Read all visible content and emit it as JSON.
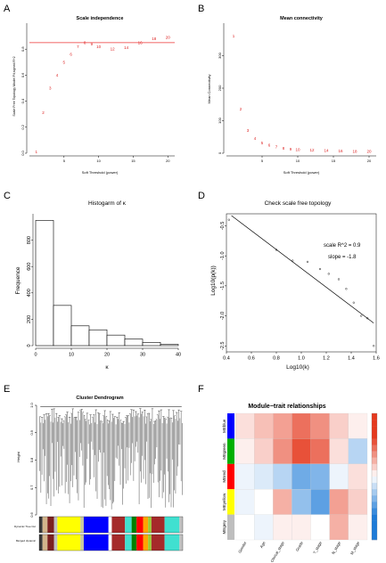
{
  "panels": {
    "A": {
      "letter": "A",
      "chart_data": {
        "type": "scatter",
        "title": "Scale independence",
        "xlabel": "Soft Threshold (power)",
        "ylabel": "Scale Free Topology Model Fit,signed R^2",
        "xlim": [
          0,
          21
        ],
        "ylim": [
          0.0,
          1.0
        ],
        "xticks": [
          5,
          10,
          15,
          20
        ],
        "yticks": [
          0.0,
          0.2,
          0.4,
          0.6,
          0.8
        ],
        "x": [
          1,
          2,
          3,
          4,
          5,
          6,
          7,
          8,
          9,
          10,
          12,
          14,
          16,
          18,
          20
        ],
        "y": [
          0.01,
          0.31,
          0.5,
          0.6,
          0.7,
          0.76,
          0.82,
          0.85,
          0.84,
          0.82,
          0.8,
          0.81,
          0.85,
          0.88,
          0.89
        ],
        "labels": [
          "1",
          "2",
          "3",
          "4",
          "5",
          "6",
          "7",
          "8",
          "9",
          "10",
          "12",
          "14",
          "16",
          "18",
          "20"
        ],
        "hline": 0.85,
        "colors": {
          "points": "#d22",
          "hline": "#e33"
        }
      }
    },
    "B": {
      "letter": "B",
      "chart_data": {
        "type": "scatter",
        "title": "Mean connectivity",
        "xlabel": "Soft Threshold (power)",
        "ylabel": "Mean Connectivity",
        "xlim": [
          0,
          21
        ],
        "ylim": [
          0,
          400
        ],
        "xticks": [
          5,
          10,
          15,
          20
        ],
        "yticks": [
          0,
          100,
          200,
          300
        ],
        "x": [
          1,
          2,
          3,
          4,
          5,
          6,
          7,
          8,
          9,
          10,
          12,
          14,
          16,
          18,
          20
        ],
        "y": [
          360,
          135,
          70,
          45,
          32,
          24,
          19,
          15,
          13,
          11,
          9,
          8,
          7,
          6,
          6
        ],
        "labels": [
          "1",
          "2",
          "3",
          "4",
          "5",
          "6",
          "7",
          "8",
          "9",
          "10",
          "12",
          "14",
          "16",
          "18",
          "20"
        ],
        "colors": {
          "points": "#d22"
        }
      }
    },
    "C": {
      "letter": "C",
      "chart_data": {
        "type": "bar",
        "title": "Histogarm of κ",
        "xlabel": "κ",
        "ylabel": "Frequence",
        "bin_edges": [
          0,
          5,
          10,
          15,
          20,
          25,
          30,
          35,
          40
        ],
        "values": [
          950,
          305,
          150,
          120,
          80,
          50,
          25,
          10
        ],
        "xlim": [
          0,
          40
        ],
        "ylim": [
          0,
          1000
        ],
        "xticks": [
          0,
          10,
          20,
          30,
          40
        ],
        "yticks": [
          0,
          200,
          400,
          600,
          800
        ]
      }
    },
    "D": {
      "letter": "D",
      "chart_data": {
        "type": "scatter",
        "title": "Check scale free topology",
        "xlabel": "Log10(k)",
        "ylabel": "Log10(p(k))",
        "xlim": [
          0.4,
          1.6
        ],
        "ylim": [
          -2.6,
          -0.3
        ],
        "xticks": [
          0.4,
          0.6,
          0.8,
          1.0,
          1.2,
          1.4,
          1.6
        ],
        "yticks": [
          -2.5,
          -2.0,
          -1.5,
          -1.0,
          -0.5
        ],
        "x": [
          0.42,
          0.8,
          0.93,
          1.05,
          1.15,
          1.22,
          1.3,
          1.36,
          1.42,
          1.48,
          1.53,
          1.58
        ],
        "y": [
          -0.4,
          -0.9,
          -1.08,
          -1.1,
          -1.22,
          -1.3,
          -1.39,
          -1.55,
          -1.78,
          -2.0,
          -2.04,
          -2.5
        ],
        "fit": {
          "x": [
            0.44,
            1.58
          ],
          "y": [
            -0.33,
            -2.12
          ]
        },
        "annotations": [
          "scale R^2 = 0.9",
          "slope = -1.8"
        ]
      }
    },
    "E": {
      "letter": "E",
      "chart_data": {
        "type": "dendrogram",
        "title": "Cluster Dendrogram",
        "ylabel": "Height",
        "ylim": [
          0.6,
          1.0
        ],
        "yticks": [
          0.6,
          0.7,
          0.8,
          0.9,
          1.0
        ],
        "row_labels": [
          "Dynamic Tree Cut",
          "Merged dynamic"
        ],
        "module_bands": [
          {
            "color": "#3a3a3a",
            "width": 0.02
          },
          {
            "color": "#d2b48c",
            "width": 0.03
          },
          {
            "color": "#7a2020",
            "width": 0.04
          },
          {
            "color": "#c0c0c0",
            "width": 0.02
          },
          {
            "color": "#ffff00",
            "width": 0.14
          },
          {
            "color": "#c8c8a0",
            "width": 0.02
          },
          {
            "color": "#0000ff",
            "width": 0.15
          },
          {
            "color": "#ffffff",
            "width": 0.02
          },
          {
            "color": "#a52a2a",
            "width": 0.08
          },
          {
            "color": "#40e0d0",
            "width": 0.04
          },
          {
            "color": "#008000",
            "width": 0.03
          },
          {
            "color": "#ff0000",
            "width": 0.04
          },
          {
            "color": "#ffa500",
            "width": 0.03
          },
          {
            "color": "#9acd32",
            "width": 0.02
          },
          {
            "color": "#a52a2a",
            "width": 0.08
          },
          {
            "color": "#40e0d0",
            "width": 0.09
          },
          {
            "color": "#c0c0c0",
            "width": 0.02
          }
        ]
      }
    },
    "F": {
      "letter": "F",
      "chart_data": {
        "type": "heatmap",
        "title": "Module−trait relationships",
        "rows": [
          "MEblue",
          "MEgreen",
          "MEred",
          "MEyellow",
          "MEgrey"
        ],
        "row_colors": [
          "#0000ff",
          "#00b000",
          "#ff0000",
          "#ffff00",
          "#bebebe"
        ],
        "columns": [
          "Gender",
          "Age",
          "Clinical_stage",
          "Grade",
          "T_stage",
          "N_stage",
          "M_stage"
        ],
        "values": [
          [
            0.1,
            0.2,
            0.3,
            0.45,
            0.35,
            0.15,
            0.05
          ],
          [
            0.05,
            0.15,
            0.35,
            0.55,
            0.45,
            0.1,
            -0.2
          ],
          [
            -0.05,
            -0.1,
            -0.2,
            -0.4,
            -0.35,
            -0.05,
            0.1
          ],
          [
            -0.05,
            0.0,
            0.25,
            -0.3,
            -0.45,
            0.3,
            0.15
          ],
          [
            0.0,
            -0.05,
            0.05,
            0.05,
            0.0,
            0.25,
            0.05
          ]
        ],
        "colorscale": [
          "#1e7bd8",
          "#ffffff",
          "#e5391e"
        ],
        "zlim": [
          -1,
          1
        ]
      }
    }
  }
}
